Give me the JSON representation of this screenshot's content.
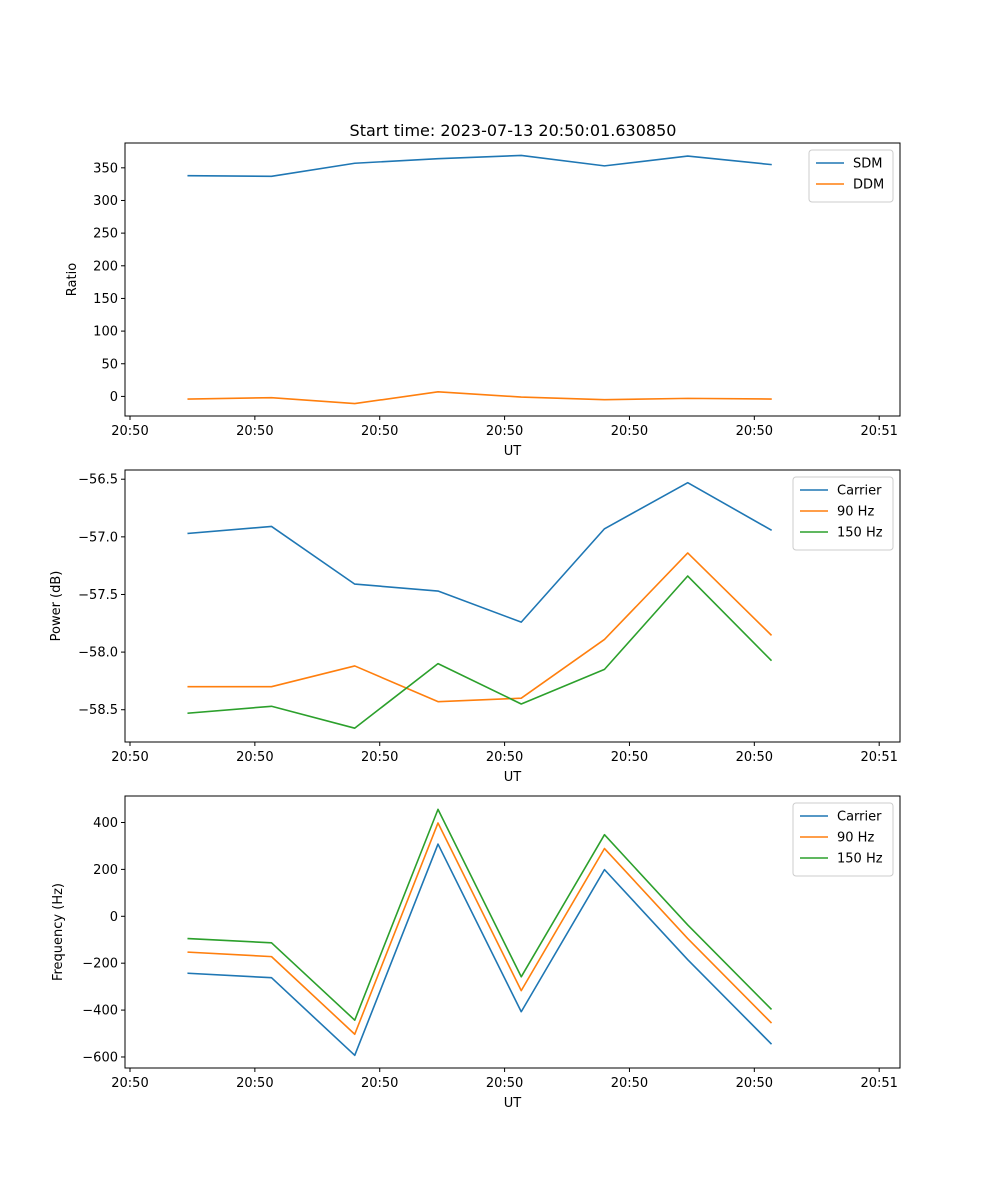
{
  "figure_title": "Start time: 2023-07-13 20:50:01.630850",
  "chart_data": [
    {
      "type": "line",
      "ylabel": "Ratio",
      "xlabel": "UT",
      "ylim": [
        -30,
        388
      ],
      "yticks": [
        0,
        50,
        100,
        150,
        200,
        250,
        300,
        350
      ],
      "ytick_labels": [
        "0",
        "50",
        "100",
        "150",
        "200",
        "250",
        "300",
        "350"
      ],
      "xlim": [
        -0.76,
        8.55
      ],
      "xticks": [
        -0.7,
        0.8,
        2.3,
        3.8,
        5.3,
        6.8,
        8.3
      ],
      "xtick_labels": [
        "20:50",
        "20:50",
        "20:50",
        "20:50",
        "20:50",
        "20:50",
        "20:51"
      ],
      "x": [
        0,
        1,
        2,
        3,
        4,
        5,
        6,
        7
      ],
      "legend_position": "top-right",
      "series": [
        {
          "name": "SDM",
          "color": "#1f77b4",
          "values": [
            338,
            337,
            357,
            364,
            369,
            353,
            368,
            355
          ]
        },
        {
          "name": "DDM",
          "color": "#ff7f0e",
          "values": [
            -4,
            -2,
            -11,
            7,
            -1,
            -5,
            -3,
            -4
          ]
        }
      ]
    },
    {
      "type": "line",
      "ylabel": "Power (dB)",
      "xlabel": "UT",
      "ylim": [
        -58.78,
        -56.42
      ],
      "yticks": [
        -58.5,
        -58.0,
        -57.5,
        -57.0,
        -56.5
      ],
      "ytick_labels": [
        "−58.5",
        "−58.0",
        "−57.5",
        "−57.0",
        "−56.5"
      ],
      "xlim": [
        -0.76,
        8.55
      ],
      "xticks": [
        -0.7,
        0.8,
        2.3,
        3.8,
        5.3,
        6.8,
        8.3
      ],
      "xtick_labels": [
        "20:50",
        "20:50",
        "20:50",
        "20:50",
        "20:50",
        "20:50",
        "20:51"
      ],
      "x": [
        0,
        1,
        2,
        3,
        4,
        5,
        6,
        7
      ],
      "legend_position": "top-right",
      "series": [
        {
          "name": "Carrier",
          "color": "#1f77b4",
          "values": [
            -56.97,
            -56.91,
            -57.41,
            -57.47,
            -57.74,
            -56.93,
            -56.53,
            -56.94
          ]
        },
        {
          "name": "90 Hz",
          "color": "#ff7f0e",
          "values": [
            -58.3,
            -58.3,
            -58.12,
            -58.43,
            -58.4,
            -57.89,
            -57.14,
            -57.85
          ]
        },
        {
          "name": "150 Hz",
          "color": "#2ca02c",
          "values": [
            -58.53,
            -58.47,
            -58.66,
            -58.1,
            -58.45,
            -58.15,
            -57.34,
            -58.07
          ]
        }
      ]
    },
    {
      "type": "line",
      "ylabel": "Frequency (Hz)",
      "xlabel": "UT",
      "ylim": [
        -647,
        513
      ],
      "yticks": [
        -600,
        -400,
        -200,
        0,
        200,
        400
      ],
      "ytick_labels": [
        "−600",
        "−400",
        "−200",
        "0",
        "200",
        "400"
      ],
      "xlim": [
        -0.76,
        8.55
      ],
      "xticks": [
        -0.7,
        0.8,
        2.3,
        3.8,
        5.3,
        6.8,
        8.3
      ],
      "xtick_labels": [
        "20:50",
        "20:50",
        "20:50",
        "20:50",
        "20:50",
        "20:50",
        "20:51"
      ],
      "x": [
        0,
        1,
        2,
        3,
        4,
        5,
        6,
        7
      ],
      "legend_position": "top-right",
      "series": [
        {
          "name": "Carrier",
          "color": "#1f77b4",
          "values": [
            -243,
            -262,
            -593,
            308,
            -407,
            199,
            -185,
            -543
          ]
        },
        {
          "name": "90 Hz",
          "color": "#ff7f0e",
          "values": [
            -153,
            -172,
            -503,
            398,
            -317,
            289,
            -95,
            -453
          ]
        },
        {
          "name": "150 Hz",
          "color": "#2ca02c",
          "values": [
            -95,
            -113,
            -443,
            456,
            -258,
            348,
            -37,
            -395
          ]
        }
      ]
    }
  ]
}
